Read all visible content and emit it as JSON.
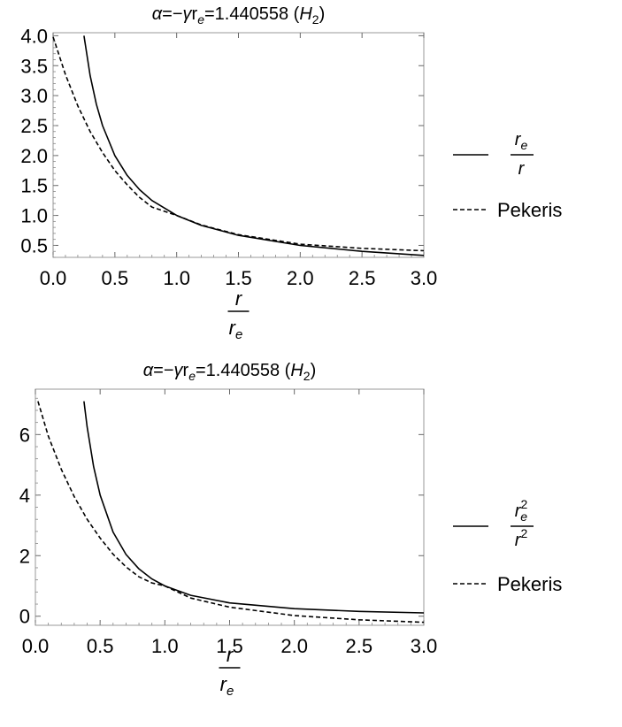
{
  "chart_data": [
    {
      "type": "line",
      "title": {
        "alpha": "α",
        "eq1": "=−",
        "gamma": "γ",
        "r": "r",
        "sub_e": "e",
        "eq2": "=1.440558 (",
        "h": "H",
        "sub_2": "2",
        "close": ")"
      },
      "xlabel": {
        "num": "r",
        "den": "r",
        "den_sub": "e"
      },
      "ylabel": "",
      "xlim": [
        0,
        3
      ],
      "ylim": [
        0.3,
        4.05
      ],
      "xticks": [
        "0.0",
        "0.5",
        "1.0",
        "1.5",
        "2.0",
        "2.5",
        "3.0"
      ],
      "yticks": [
        "0.5",
        "1.0",
        "1.5",
        "2.0",
        "2.5",
        "3.0",
        "3.5",
        "4.0"
      ],
      "legend_position": "right",
      "series": [
        {
          "legend": {
            "num": "r",
            "num_sub": "e",
            "num_sup": "",
            "den": "r",
            "den_sup": ""
          },
          "style": "solid",
          "x": [
            0.25,
            0.3,
            0.35,
            0.4,
            0.5,
            0.6,
            0.7,
            0.8,
            1.0,
            1.2,
            1.5,
            2.0,
            2.5,
            3.0
          ],
          "y": [
            4.0,
            3.333,
            2.857,
            2.5,
            2.0,
            1.667,
            1.429,
            1.25,
            1.0,
            0.833,
            0.667,
            0.5,
            0.4,
            0.333
          ]
        },
        {
          "legend": {
            "text": "Pekeris"
          },
          "style": "dashed",
          "x": [
            0.0,
            0.1,
            0.2,
            0.3,
            0.4,
            0.5,
            0.6,
            0.7,
            0.8,
            1.0,
            1.2,
            1.5,
            2.0,
            2.5,
            3.0
          ],
          "y": [
            3.98,
            3.35,
            2.83,
            2.4,
            2.05,
            1.75,
            1.51,
            1.3,
            1.14,
            1.0,
            0.84,
            0.68,
            0.52,
            0.45,
            0.41
          ]
        }
      ]
    },
    {
      "type": "line",
      "title": {
        "alpha": "α",
        "eq1": "=−",
        "gamma": "γ",
        "r": "r",
        "sub_e": "e",
        "eq2": "=1.440558 (",
        "h": "H",
        "sub_2": "2",
        "close": ")"
      },
      "xlabel": {
        "num": "r",
        "den": "r",
        "den_sub": "e"
      },
      "ylabel": "",
      "xlim": [
        0,
        3
      ],
      "ylim": [
        -0.3,
        7.5
      ],
      "xticks": [
        "0.0",
        "0.5",
        "1.0",
        "1.5",
        "2.0",
        "2.5",
        "3.0"
      ],
      "yticks": [
        "0",
        "2",
        "4",
        "6"
      ],
      "legend_position": "right",
      "series": [
        {
          "legend": {
            "num": "r",
            "num_sub": "e",
            "num_sup": "2",
            "den": "r",
            "den_sup": "2"
          },
          "style": "solid",
          "x": [
            0.375,
            0.4,
            0.45,
            0.5,
            0.6,
            0.7,
            0.8,
            0.9,
            1.0,
            1.2,
            1.5,
            2.0,
            2.5,
            3.0
          ],
          "y": [
            7.1,
            6.25,
            4.94,
            4.0,
            2.78,
            2.04,
            1.56,
            1.23,
            1.0,
            0.69,
            0.44,
            0.25,
            0.16,
            0.11
          ]
        },
        {
          "legend": {
            "text": "Pekeris"
          },
          "style": "dashed",
          "x": [
            0.02,
            0.1,
            0.2,
            0.3,
            0.4,
            0.5,
            0.6,
            0.7,
            0.8,
            0.9,
            1.0,
            1.2,
            1.5,
            2.0,
            2.5,
            3.0
          ],
          "y": [
            7.1,
            5.95,
            4.85,
            3.95,
            3.2,
            2.58,
            2.05,
            1.63,
            1.3,
            1.1,
            1.0,
            0.6,
            0.3,
            0.02,
            -0.12,
            -0.2
          ]
        }
      ]
    }
  ]
}
